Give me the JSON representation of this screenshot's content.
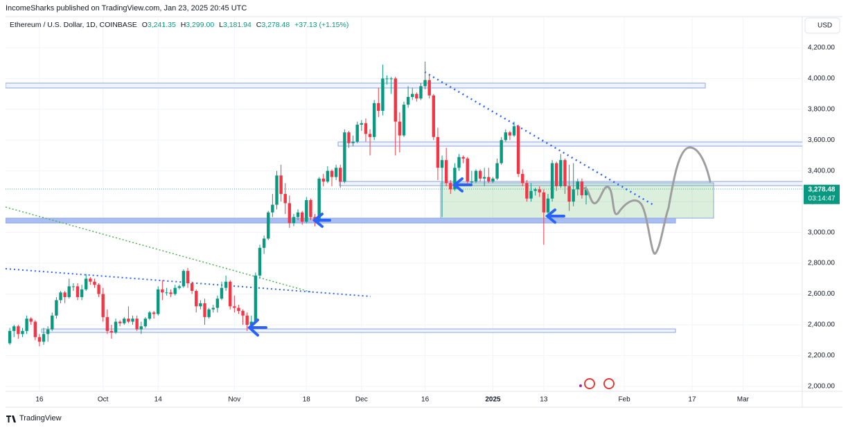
{
  "chart_data": {
    "type": "candlestick",
    "publisher": "IncomeSharks published on TradingView.com, Jan 23, 2025 20:45 UTC",
    "title": "Ethereum / U.S. Dollar, 1D, COINBASE",
    "legend_values": [
      {
        "key": "O",
        "label": "3,241.35"
      },
      {
        "key": "H",
        "label": "3,299.00"
      },
      {
        "key": "L",
        "label": "3,181.94"
      },
      {
        "key": "C",
        "label": "3,278.48"
      }
    ],
    "change_label": "+37.13 (+1.15%)",
    "currency": "USD",
    "last_price_label": "3,278.48",
    "countdown": "03:14:47",
    "brand": "TradingView",
    "up_color": "#089981",
    "down_color": "#f23645",
    "grid": true,
    "xlim": [
      "2024-09-08",
      "2025-03-15"
    ],
    "ylim": [
      1968,
      4402
    ],
    "yticks": [
      {
        "value": 2000,
        "label": "2,000.00"
      },
      {
        "value": 2200,
        "label": "2,200.00"
      },
      {
        "value": 2400,
        "label": "2,400.00"
      },
      {
        "value": 2600,
        "label": "2,600.00"
      },
      {
        "value": 2800,
        "label": "2,800.00"
      },
      {
        "value": 3000,
        "label": "3,000.00"
      },
      {
        "value": 3200,
        "label": "3,200.00"
      },
      {
        "value": 3400,
        "label": "3,400.00"
      },
      {
        "value": 3600,
        "label": "3,600.00"
      },
      {
        "value": 3800,
        "label": "3,800.00"
      },
      {
        "value": 4000,
        "label": "4,000.00"
      },
      {
        "value": 4200,
        "label": "4,200.00"
      }
    ],
    "xticks": [
      {
        "value": "2024-09-16",
        "label": "16"
      },
      {
        "value": "2024-10-01",
        "label": "Oct"
      },
      {
        "value": "2024-10-14",
        "label": "14"
      },
      {
        "value": "2024-11-01",
        "label": "Nov"
      },
      {
        "value": "2024-11-18",
        "label": "18"
      },
      {
        "value": "2024-12-01",
        "label": "Dec"
      },
      {
        "value": "2024-12-16",
        "label": "16"
      },
      {
        "value": "2025-01-01",
        "label": "2025"
      },
      {
        "value": "2025-01-13",
        "label": "13"
      },
      {
        "value": "2025-02-01",
        "label": "Feb"
      },
      {
        "value": "2025-02-17",
        "label": "17"
      },
      {
        "value": "2025-03-01",
        "label": "Mar"
      }
    ],
    "x": [
      "2024-09-09",
      "2024-09-10",
      "2024-09-11",
      "2024-09-12",
      "2024-09-13",
      "2024-09-14",
      "2024-09-15",
      "2024-09-16",
      "2024-09-17",
      "2024-09-18",
      "2024-09-19",
      "2024-09-20",
      "2024-09-21",
      "2024-09-22",
      "2024-09-23",
      "2024-09-24",
      "2024-09-25",
      "2024-09-26",
      "2024-09-27",
      "2024-09-28",
      "2024-09-29",
      "2024-09-30",
      "2024-10-01",
      "2024-10-02",
      "2024-10-03",
      "2024-10-04",
      "2024-10-05",
      "2024-10-06",
      "2024-10-07",
      "2024-10-08",
      "2024-10-09",
      "2024-10-10",
      "2024-10-11",
      "2024-10-12",
      "2024-10-13",
      "2024-10-14",
      "2024-10-15",
      "2024-10-16",
      "2024-10-17",
      "2024-10-18",
      "2024-10-19",
      "2024-10-20",
      "2024-10-21",
      "2024-10-22",
      "2024-10-23",
      "2024-10-24",
      "2024-10-25",
      "2024-10-26",
      "2024-10-27",
      "2024-10-28",
      "2024-10-29",
      "2024-10-30",
      "2024-10-31",
      "2024-11-01",
      "2024-11-02",
      "2024-11-03",
      "2024-11-04",
      "2024-11-05",
      "2024-11-06",
      "2024-11-07",
      "2024-11-08",
      "2024-11-09",
      "2024-11-10",
      "2024-11-11",
      "2024-11-12",
      "2024-11-13",
      "2024-11-14",
      "2024-11-15",
      "2024-11-16",
      "2024-11-17",
      "2024-11-18",
      "2024-11-19",
      "2024-11-20",
      "2024-11-21",
      "2024-11-22",
      "2024-11-23",
      "2024-11-24",
      "2024-11-25",
      "2024-11-26",
      "2024-11-27",
      "2024-11-28",
      "2024-11-29",
      "2024-11-30",
      "2024-12-01",
      "2024-12-02",
      "2024-12-03",
      "2024-12-04",
      "2024-12-05",
      "2024-12-06",
      "2024-12-07",
      "2024-12-08",
      "2024-12-09",
      "2024-12-10",
      "2024-12-11",
      "2024-12-12",
      "2024-12-13",
      "2024-12-14",
      "2024-12-15",
      "2024-12-16",
      "2024-12-17",
      "2024-12-18",
      "2024-12-19",
      "2024-12-20",
      "2024-12-21",
      "2024-12-22",
      "2024-12-23",
      "2024-12-24",
      "2024-12-25",
      "2024-12-26",
      "2024-12-27",
      "2024-12-28",
      "2024-12-29",
      "2024-12-30",
      "2024-12-31",
      "2025-01-01",
      "2025-01-02",
      "2025-01-03",
      "2025-01-04",
      "2025-01-05",
      "2025-01-06",
      "2025-01-07",
      "2025-01-08",
      "2025-01-09",
      "2025-01-10",
      "2025-01-11",
      "2025-01-12",
      "2025-01-13",
      "2025-01-14",
      "2025-01-15",
      "2025-01-16",
      "2025-01-17",
      "2025-01-18",
      "2025-01-19",
      "2025-01-20",
      "2025-01-21",
      "2025-01-22",
      "2025-01-23"
    ],
    "ohlc": [
      [
        2280,
        2380,
        2270,
        2360
      ],
      [
        2360,
        2400,
        2320,
        2390
      ],
      [
        2390,
        2400,
        2310,
        2340
      ],
      [
        2340,
        2380,
        2320,
        2360
      ],
      [
        2360,
        2460,
        2340,
        2440
      ],
      [
        2440,
        2450,
        2400,
        2420
      ],
      [
        2420,
        2430,
        2300,
        2320
      ],
      [
        2320,
        2340,
        2260,
        2290
      ],
      [
        2290,
        2380,
        2270,
        2340
      ],
      [
        2340,
        2390,
        2290,
        2370
      ],
      [
        2370,
        2480,
        2360,
        2460
      ],
      [
        2460,
        2580,
        2440,
        2560
      ],
      [
        2560,
        2620,
        2540,
        2610
      ],
      [
        2610,
        2620,
        2540,
        2580
      ],
      [
        2580,
        2700,
        2570,
        2650
      ],
      [
        2650,
        2670,
        2620,
        2650
      ],
      [
        2650,
        2670,
        2560,
        2580
      ],
      [
        2580,
        2660,
        2560,
        2630
      ],
      [
        2630,
        2730,
        2620,
        2700
      ],
      [
        2700,
        2710,
        2660,
        2680
      ],
      [
        2680,
        2700,
        2640,
        2660
      ],
      [
        2660,
        2670,
        2580,
        2600
      ],
      [
        2600,
        2640,
        2420,
        2450
      ],
      [
        2450,
        2500,
        2340,
        2360
      ],
      [
        2360,
        2400,
        2310,
        2350
      ],
      [
        2350,
        2440,
        2340,
        2420
      ],
      [
        2420,
        2430,
        2390,
        2410
      ],
      [
        2410,
        2450,
        2400,
        2440
      ],
      [
        2440,
        2520,
        2410,
        2420
      ],
      [
        2420,
        2460,
        2400,
        2440
      ],
      [
        2440,
        2460,
        2360,
        2370
      ],
      [
        2370,
        2420,
        2340,
        2390
      ],
      [
        2390,
        2450,
        2380,
        2440
      ],
      [
        2440,
        2490,
        2430,
        2480
      ],
      [
        2480,
        2490,
        2440,
        2470
      ],
      [
        2470,
        2650,
        2460,
        2630
      ],
      [
        2630,
        2690,
        2560,
        2610
      ],
      [
        2610,
        2640,
        2590,
        2610
      ],
      [
        2610,
        2630,
        2580,
        2600
      ],
      [
        2600,
        2660,
        2590,
        2640
      ],
      [
        2640,
        2660,
        2630,
        2650
      ],
      [
        2650,
        2760,
        2640,
        2750
      ],
      [
        2750,
        2770,
        2640,
        2670
      ],
      [
        2670,
        2680,
        2600,
        2620
      ],
      [
        2620,
        2630,
        2480,
        2520
      ],
      [
        2520,
        2560,
        2500,
        2540
      ],
      [
        2540,
        2570,
        2400,
        2450
      ],
      [
        2450,
        2510,
        2440,
        2500
      ],
      [
        2500,
        2530,
        2480,
        2510
      ],
      [
        2510,
        2590,
        2480,
        2570
      ],
      [
        2570,
        2680,
        2560,
        2640
      ],
      [
        2640,
        2720,
        2620,
        2680
      ],
      [
        2680,
        2690,
        2500,
        2520
      ],
      [
        2520,
        2590,
        2480,
        2510
      ],
      [
        2510,
        2530,
        2470,
        2490
      ],
      [
        2490,
        2500,
        2400,
        2460
      ],
      [
        2460,
        2480,
        2360,
        2400
      ],
      [
        2400,
        2460,
        2380,
        2420
      ],
      [
        2420,
        2740,
        2410,
        2720
      ],
      [
        2720,
        2920,
        2700,
        2900
      ],
      [
        2900,
        2980,
        2860,
        2960
      ],
      [
        2960,
        3140,
        2950,
        3130
      ],
      [
        3130,
        3250,
        3100,
        3180
      ],
      [
        3180,
        3400,
        3150,
        3370
      ],
      [
        3370,
        3440,
        3200,
        3250
      ],
      [
        3250,
        3320,
        3120,
        3190
      ],
      [
        3190,
        3240,
        3030,
        3060
      ],
      [
        3060,
        3120,
        3040,
        3100
      ],
      [
        3100,
        3150,
        3080,
        3130
      ],
      [
        3130,
        3140,
        3050,
        3070
      ],
      [
        3070,
        3230,
        3060,
        3210
      ],
      [
        3210,
        3220,
        3080,
        3100
      ],
      [
        3100,
        3120,
        3040,
        3070
      ],
      [
        3070,
        3360,
        3060,
        3350
      ],
      [
        3350,
        3380,
        3300,
        3330
      ],
      [
        3330,
        3430,
        3320,
        3400
      ],
      [
        3400,
        3410,
        3300,
        3360
      ],
      [
        3360,
        3440,
        3340,
        3420
      ],
      [
        3420,
        3440,
        3290,
        3330
      ],
      [
        3330,
        3670,
        3320,
        3650
      ],
      [
        3650,
        3660,
        3550,
        3580
      ],
      [
        3580,
        3630,
        3560,
        3590
      ],
      [
        3590,
        3720,
        3580,
        3700
      ],
      [
        3700,
        3730,
        3660,
        3710
      ],
      [
        3710,
        3740,
        3590,
        3640
      ],
      [
        3640,
        3670,
        3500,
        3620
      ],
      [
        3620,
        3860,
        3600,
        3840
      ],
      [
        3840,
        3940,
        3750,
        3790
      ],
      [
        3790,
        4090,
        3760,
        4000
      ],
      [
        4000,
        4020,
        3960,
        4000
      ],
      [
        4000,
        4010,
        3900,
        4000
      ],
      [
        4000,
        4010,
        3500,
        3720
      ],
      [
        3720,
        3780,
        3520,
        3630
      ],
      [
        3630,
        3850,
        3620,
        3830
      ],
      [
        3830,
        3950,
        3810,
        3880
      ],
      [
        3880,
        3940,
        3860,
        3900
      ],
      [
        3900,
        3910,
        3850,
        3870
      ],
      [
        3870,
        3970,
        3860,
        3950
      ],
      [
        3950,
        4110,
        3930,
        3990
      ],
      [
        3990,
        4030,
        3870,
        3890
      ],
      [
        3890,
        3900,
        3600,
        3620
      ],
      [
        3620,
        3680,
        3340,
        3420
      ],
      [
        3420,
        3500,
        3100,
        3470
      ],
      [
        3470,
        3550,
        3300,
        3320
      ],
      [
        3320,
        3340,
        3250,
        3280
      ],
      [
        3280,
        3450,
        3270,
        3420
      ],
      [
        3420,
        3510,
        3400,
        3490
      ],
      [
        3490,
        3500,
        3450,
        3480
      ],
      [
        3480,
        3490,
        3300,
        3330
      ],
      [
        3330,
        3400,
        3300,
        3330
      ],
      [
        3330,
        3410,
        3320,
        3400
      ],
      [
        3400,
        3410,
        3330,
        3350
      ],
      [
        3350,
        3420,
        3300,
        3360
      ],
      [
        3360,
        3420,
        3320,
        3330
      ],
      [
        3330,
        3360,
        3320,
        3350
      ],
      [
        3350,
        3480,
        3340,
        3450
      ],
      [
        3450,
        3620,
        3440,
        3600
      ],
      [
        3600,
        3670,
        3590,
        3650
      ],
      [
        3650,
        3660,
        3600,
        3630
      ],
      [
        3630,
        3720,
        3620,
        3690
      ],
      [
        3690,
        3700,
        3360,
        3380
      ],
      [
        3380,
        3410,
        3300,
        3320
      ],
      [
        3320,
        3340,
        3200,
        3220
      ],
      [
        3220,
        3320,
        3200,
        3270
      ],
      [
        3270,
        3290,
        3240,
        3280
      ],
      [
        3280,
        3300,
        3230,
        3260
      ],
      [
        3260,
        3280,
        2920,
        3130
      ],
      [
        3130,
        3250,
        3120,
        3220
      ],
      [
        3220,
        3470,
        3200,
        3450
      ],
      [
        3450,
        3460,
        3270,
        3300
      ],
      [
        3300,
        3510,
        3290,
        3470
      ],
      [
        3470,
        3480,
        3250,
        3300
      ],
      [
        3300,
        3440,
        3140,
        3200
      ],
      [
        3200,
        3450,
        3170,
        3280
      ],
      [
        3280,
        3350,
        3240,
        3330
      ],
      [
        3330,
        3350,
        3220,
        3241.35
      ],
      [
        3241.35,
        3299,
        3181.94,
        3278.48
      ]
    ]
  }
}
